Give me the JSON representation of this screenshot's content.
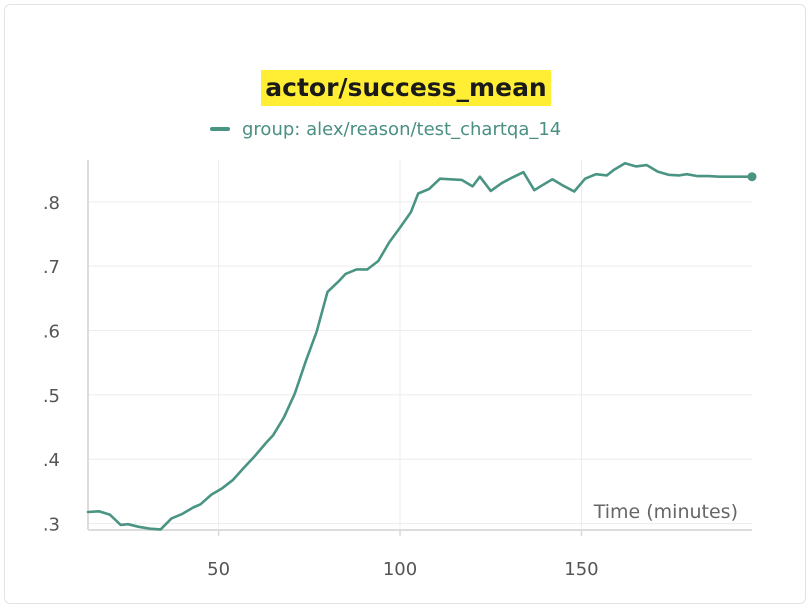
{
  "chart_data": {
    "type": "line",
    "title": "actor/success_mean",
    "xlabel": "Time (minutes)",
    "ylabel": "",
    "xlim": [
      14,
      197
    ],
    "ylim": [
      0.29,
      0.865
    ],
    "x_ticks": [
      50,
      100,
      150
    ],
    "y_ticks": [
      0.3,
      0.4,
      0.5,
      0.6,
      0.7,
      0.8
    ],
    "y_tick_labels": [
      ".3",
      ".4",
      ".5",
      ".6",
      ".7",
      ".8"
    ],
    "grid": true,
    "legend_position": "top",
    "series": [
      {
        "name": "group: alex/reason/test_chartqa_14",
        "color": "#4a9484",
        "x": [
          14,
          17,
          20,
          23,
          25,
          28,
          31,
          34,
          37,
          40,
          43,
          45,
          48,
          51,
          54,
          57,
          60,
          63,
          65,
          68,
          71,
          74,
          77,
          80,
          83,
          85,
          88,
          91,
          94,
          97,
          100,
          103,
          105,
          108,
          111,
          114,
          117,
          120,
          122,
          125,
          128,
          131,
          134,
          137,
          139,
          142,
          145,
          148,
          151,
          154,
          157,
          159,
          162,
          165,
          168,
          171,
          174,
          177,
          179,
          182,
          185,
          188,
          191,
          194,
          197
        ],
        "values": [
          0.318,
          0.319,
          0.314,
          0.298,
          0.299,
          0.295,
          0.292,
          0.291,
          0.308,
          0.315,
          0.325,
          0.33,
          0.345,
          0.355,
          0.368,
          0.387,
          0.405,
          0.425,
          0.437,
          0.465,
          0.502,
          0.552,
          0.598,
          0.66,
          0.676,
          0.688,
          0.695,
          0.695,
          0.708,
          0.737,
          0.76,
          0.784,
          0.813,
          0.82,
          0.836,
          0.835,
          0.834,
          0.824,
          0.839,
          0.817,
          0.829,
          0.838,
          0.846,
          0.818,
          0.825,
          0.835,
          0.825,
          0.816,
          0.836,
          0.843,
          0.841,
          0.85,
          0.86,
          0.855,
          0.857,
          0.847,
          0.842,
          0.841,
          0.843,
          0.84,
          0.84,
          0.839,
          0.839,
          0.839,
          0.839
        ]
      }
    ]
  }
}
